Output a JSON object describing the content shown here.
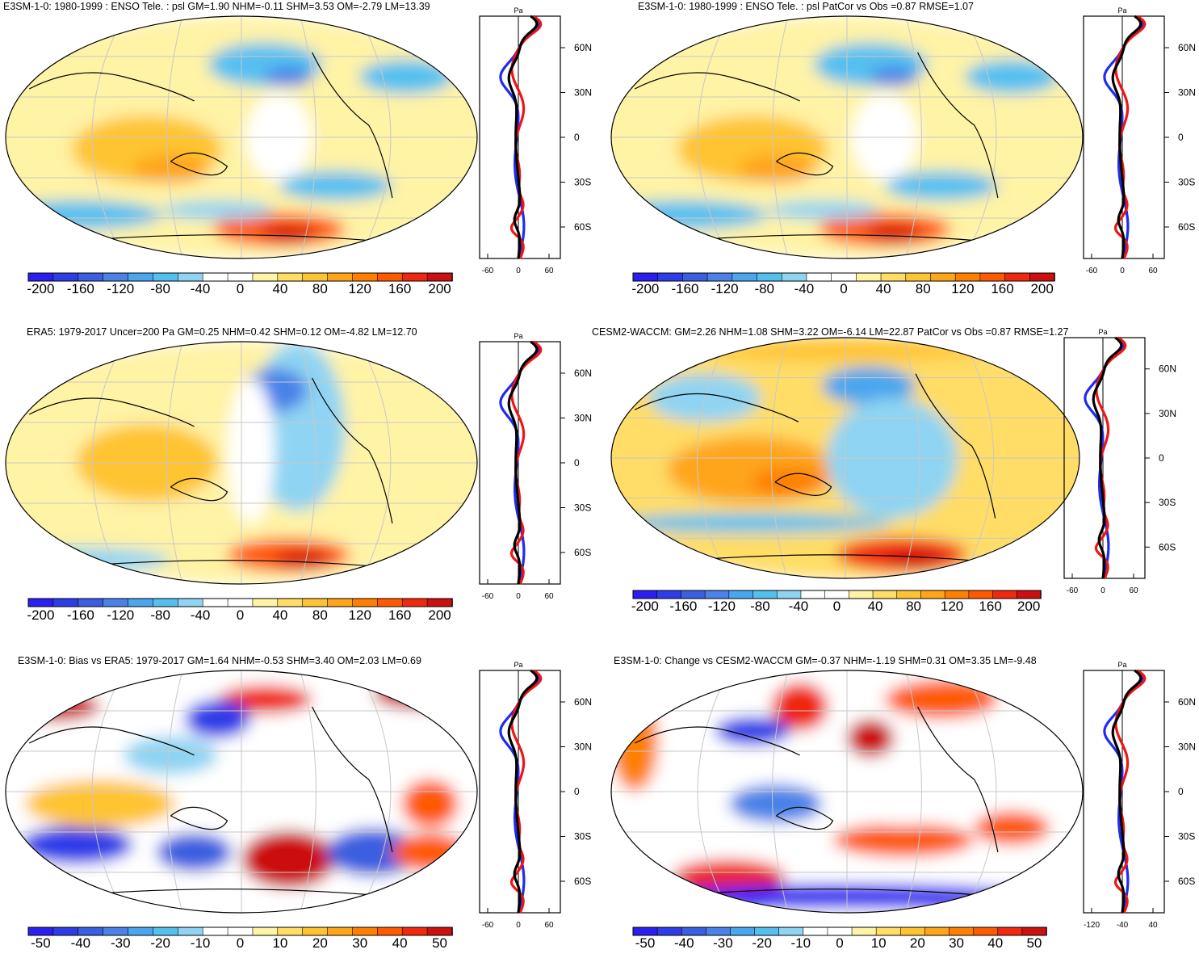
{
  "panels": [
    {
      "title": "E3SM-1-0: 1980-1999 : ENSO Tele. : psl GM=1.90 NHM=-0.11 SHM=3.53 OM=-2.79 LM=13.39",
      "colorbar_labels": [
        "-200",
        "-160",
        "-120",
        "-80",
        "-40",
        "0",
        "40",
        "80",
        "120",
        "160",
        "200"
      ],
      "profile_xticks": [
        "-60",
        "0",
        "60"
      ],
      "profile_unit": "Pa",
      "lat_labels": [
        "60N",
        "30N",
        "0",
        "30S",
        "60S"
      ]
    },
    {
      "title": "E3SM-1-0: 1980-1999 : ENSO Tele. : psl PatCor vs Obs =0.87 RMSE=1.07",
      "colorbar_labels": [
        "-200",
        "-160",
        "-120",
        "-80",
        "-40",
        "0",
        "40",
        "80",
        "120",
        "160",
        "200"
      ],
      "profile_xticks": [
        "-60",
        "0",
        "60"
      ],
      "profile_unit": "Pa",
      "lat_labels": [
        "60N",
        "30N",
        "0",
        "30S",
        "60S"
      ]
    },
    {
      "title": "ERA5: 1979-2017 Uncer=200 Pa GM=0.25 NHM=0.42 SHM=0.12 OM=-4.82 LM=12.70",
      "colorbar_labels": [
        "-200",
        "-160",
        "-120",
        "-80",
        "-40",
        "0",
        "40",
        "80",
        "120",
        "160",
        "200"
      ],
      "profile_xticks": [
        "-60",
        "0",
        "60"
      ],
      "profile_unit": "Pa",
      "lat_labels": [
        "60N",
        "30N",
        "0",
        "30S",
        "60S"
      ]
    },
    {
      "title": "CESM2-WACCM: GM=2.26 NHM=1.08 SHM=3.22 OM=-6.14 LM=22.87 PatCor vs Obs =0.87 RMSE=1.27",
      "colorbar_labels": [
        "-200",
        "-160",
        "-120",
        "-80",
        "-40",
        "0",
        "40",
        "80",
        "120",
        "160",
        "200"
      ],
      "profile_xticks": [
        "-60",
        "0",
        "60"
      ],
      "profile_unit": "Pa",
      "lat_labels": [
        "60N",
        "30N",
        "0",
        "30S",
        "60S"
      ]
    },
    {
      "title": "E3SM-1-0: Bias vs ERA5: 1979-2017 GM=1.64 NHM=-0.53 SHM=3.40 OM=2.03 LM=0.69",
      "colorbar_labels": [
        "-50",
        "-40",
        "-30",
        "-20",
        "-10",
        "0",
        "10",
        "20",
        "30",
        "40",
        "50"
      ],
      "profile_xticks": [
        "-60",
        "0",
        "60"
      ],
      "profile_unit": "Pa",
      "lat_labels": [
        "60N",
        "30N",
        "0",
        "30S",
        "60S"
      ]
    },
    {
      "title": "E3SM-1-0: Change vs CESM2-WACCM GM=-0.37 NHM=-1.19 SHM=0.31 OM=3.35 LM=-9.48",
      "colorbar_labels": [
        "-50",
        "-40",
        "-30",
        "-20",
        "-10",
        "0",
        "10",
        "20",
        "30",
        "40",
        "50"
      ],
      "profile_xticks": [
        "-120",
        "-40",
        "40"
      ],
      "profile_unit": "Pa",
      "lat_labels": [
        "60N",
        "30N",
        "0",
        "30S",
        "60S"
      ]
    }
  ],
  "colors": {
    "scale": [
      "#2a1ff0",
      "#2f3de8",
      "#3a5fe0",
      "#4a82e8",
      "#4aa6ee",
      "#55c0f0",
      "#8fd4f2",
      "#ffffff",
      "#ffffff",
      "#fff3a6",
      "#ffdd66",
      "#ffc433",
      "#ffa51a",
      "#ff8000",
      "#ff5a00",
      "#f0280f",
      "#cc0f0f"
    ],
    "zonal_model": "#1f2bef",
    "zonal_obs": "#f01414",
    "zonal_mean": "#000000",
    "grid": "#c8c8c8"
  }
}
